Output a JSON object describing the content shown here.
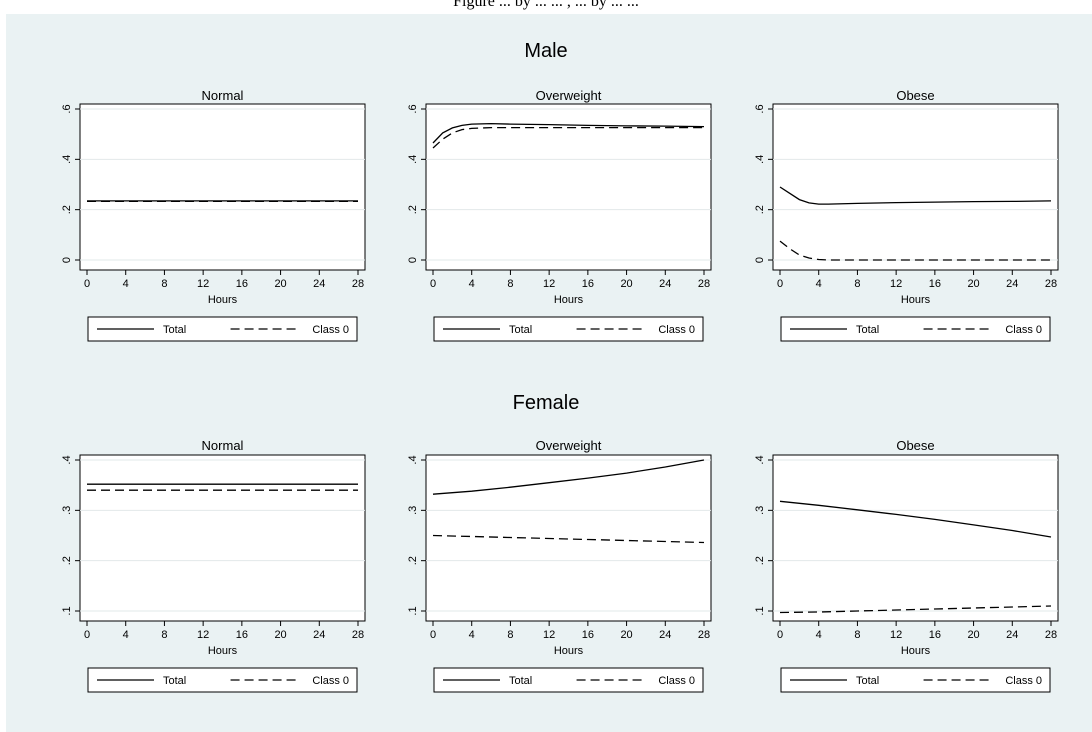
{
  "caption_fragment": "Figure ... by ... ... , ... by ... ...",
  "colors": {
    "background": "#eaf2f3",
    "plot_bg": "#ffffff",
    "grid": "#e2e8ea",
    "line": "#000000"
  },
  "groups": [
    {
      "title": "Male"
    },
    {
      "title": "Female"
    }
  ],
  "chart_data": [
    {
      "type": "line",
      "group": "Male",
      "title": "Normal",
      "xlabel": "Hours",
      "ylabel": "",
      "xlim": [
        0,
        28
      ],
      "ylim": [
        0,
        0.6
      ],
      "xticks": [
        0,
        4,
        8,
        12,
        16,
        20,
        24,
        28
      ],
      "xtick_labels": [
        "0",
        "4",
        "8",
        "12",
        "16",
        "20",
        "24",
        "28"
      ],
      "yticks": [
        0,
        0.2,
        0.4,
        0.6
      ],
      "ytick_labels": [
        "0",
        ".2",
        ".4",
        ".6"
      ],
      "grid": true,
      "legend": "bottom",
      "x": [
        0,
        4,
        8,
        12,
        16,
        20,
        24,
        28
      ],
      "series": [
        {
          "name": "Total",
          "style": "solid",
          "values": [
            0.235,
            0.235,
            0.235,
            0.235,
            0.235,
            0.235,
            0.235,
            0.235
          ]
        },
        {
          "name": "Class 0",
          "style": "dashed",
          "values": [
            0.233,
            0.233,
            0.233,
            0.233,
            0.233,
            0.233,
            0.233,
            0.233
          ]
        }
      ]
    },
    {
      "type": "line",
      "group": "Male",
      "title": "Overweight",
      "xlabel": "Hours",
      "ylabel": "",
      "xlim": [
        0,
        28
      ],
      "ylim": [
        0,
        0.6
      ],
      "xticks": [
        0,
        4,
        8,
        12,
        16,
        20,
        24,
        28
      ],
      "xtick_labels": [
        "0",
        "4",
        "8",
        "12",
        "16",
        "20",
        "24",
        "28"
      ],
      "yticks": [
        0,
        0.2,
        0.4,
        0.6
      ],
      "ytick_labels": [
        "0",
        ".2",
        ".4",
        ".6"
      ],
      "grid": true,
      "legend": "bottom",
      "x": [
        0,
        1,
        2,
        3,
        4,
        6,
        8,
        12,
        16,
        20,
        24,
        28
      ],
      "series": [
        {
          "name": "Total",
          "style": "solid",
          "values": [
            0.465,
            0.505,
            0.525,
            0.535,
            0.54,
            0.542,
            0.54,
            0.538,
            0.535,
            0.533,
            0.532,
            0.53
          ]
        },
        {
          "name": "Class 0",
          "style": "dashed",
          "values": [
            0.445,
            0.48,
            0.505,
            0.518,
            0.523,
            0.526,
            0.526,
            0.526,
            0.526,
            0.526,
            0.526,
            0.526
          ]
        }
      ]
    },
    {
      "type": "line",
      "group": "Male",
      "title": "Obese",
      "xlabel": "Hours",
      "ylabel": "",
      "xlim": [
        0,
        28
      ],
      "ylim": [
        0,
        0.6
      ],
      "xticks": [
        0,
        4,
        8,
        12,
        16,
        20,
        24,
        28
      ],
      "xtick_labels": [
        "0",
        "4",
        "8",
        "12",
        "16",
        "20",
        "24",
        "28"
      ],
      "yticks": [
        0,
        0.2,
        0.4,
        0.6
      ],
      "ytick_labels": [
        "0",
        ".2",
        ".4",
        ".6"
      ],
      "grid": true,
      "legend": "bottom",
      "x": [
        0,
        1,
        2,
        3,
        4,
        5,
        6,
        8,
        12,
        16,
        20,
        24,
        28
      ],
      "series": [
        {
          "name": "Total",
          "style": "solid",
          "values": [
            0.29,
            0.265,
            0.24,
            0.227,
            0.222,
            0.222,
            0.223,
            0.225,
            0.228,
            0.23,
            0.232,
            0.233,
            0.235
          ]
        },
        {
          "name": "Class 0",
          "style": "dashed",
          "values": [
            0.075,
            0.045,
            0.02,
            0.008,
            0.002,
            0.0,
            0.0,
            0.0,
            0.0,
            0.0,
            0.0,
            0.0,
            0.0
          ]
        }
      ]
    },
    {
      "type": "line",
      "group": "Female",
      "title": "Normal",
      "xlabel": "Hours",
      "ylabel": "",
      "xlim": [
        0,
        28
      ],
      "ylim": [
        0.1,
        0.4
      ],
      "xticks": [
        0,
        4,
        8,
        12,
        16,
        20,
        24,
        28
      ],
      "xtick_labels": [
        "0",
        "4",
        "8",
        "12",
        "16",
        "20",
        "24",
        "28"
      ],
      "yticks": [
        0.1,
        0.2,
        0.3,
        0.4
      ],
      "ytick_labels": [
        ".1",
        ".2",
        ".3",
        ".4"
      ],
      "grid": true,
      "legend": "bottom",
      "x": [
        0,
        4,
        8,
        12,
        16,
        20,
        24,
        28
      ],
      "series": [
        {
          "name": "Total",
          "style": "solid",
          "values": [
            0.352,
            0.352,
            0.352,
            0.352,
            0.352,
            0.352,
            0.352,
            0.352
          ]
        },
        {
          "name": "Class 0",
          "style": "dashed",
          "values": [
            0.34,
            0.34,
            0.34,
            0.34,
            0.34,
            0.34,
            0.34,
            0.34
          ]
        }
      ]
    },
    {
      "type": "line",
      "group": "Female",
      "title": "Overweight",
      "xlabel": "Hours",
      "ylabel": "",
      "xlim": [
        0,
        28
      ],
      "ylim": [
        0.1,
        0.4
      ],
      "xticks": [
        0,
        4,
        8,
        12,
        16,
        20,
        24,
        28
      ],
      "xtick_labels": [
        "0",
        "4",
        "8",
        "12",
        "16",
        "20",
        "24",
        "28"
      ],
      "yticks": [
        0.1,
        0.2,
        0.3,
        0.4
      ],
      "ytick_labels": [
        ".1",
        ".2",
        ".3",
        ".4"
      ],
      "grid": true,
      "legend": "bottom",
      "x": [
        0,
        4,
        8,
        12,
        16,
        20,
        24,
        28
      ],
      "series": [
        {
          "name": "Total",
          "style": "solid",
          "values": [
            0.332,
            0.338,
            0.346,
            0.355,
            0.364,
            0.374,
            0.386,
            0.4
          ]
        },
        {
          "name": "Class 0",
          "style": "dashed",
          "values": [
            0.25,
            0.248,
            0.246,
            0.244,
            0.242,
            0.24,
            0.238,
            0.236
          ]
        }
      ]
    },
    {
      "type": "line",
      "group": "Female",
      "title": "Obese",
      "xlabel": "Hours",
      "ylabel": "",
      "xlim": [
        0,
        28
      ],
      "ylim": [
        0.1,
        0.4
      ],
      "xticks": [
        0,
        4,
        8,
        12,
        16,
        20,
        24,
        28
      ],
      "xtick_labels": [
        "0",
        "4",
        "8",
        "12",
        "16",
        "20",
        "24",
        "28"
      ],
      "yticks": [
        0.1,
        0.2,
        0.3,
        0.4
      ],
      "ytick_labels": [
        ".1",
        ".2",
        ".3",
        ".4"
      ],
      "grid": true,
      "legend": "bottom",
      "x": [
        0,
        4,
        8,
        12,
        16,
        20,
        24,
        28
      ],
      "series": [
        {
          "name": "Total",
          "style": "solid",
          "values": [
            0.318,
            0.31,
            0.301,
            0.292,
            0.282,
            0.271,
            0.26,
            0.247
          ]
        },
        {
          "name": "Class 0",
          "style": "dashed",
          "values": [
            0.097,
            0.098,
            0.1,
            0.102,
            0.104,
            0.106,
            0.108,
            0.11
          ]
        }
      ]
    }
  ]
}
